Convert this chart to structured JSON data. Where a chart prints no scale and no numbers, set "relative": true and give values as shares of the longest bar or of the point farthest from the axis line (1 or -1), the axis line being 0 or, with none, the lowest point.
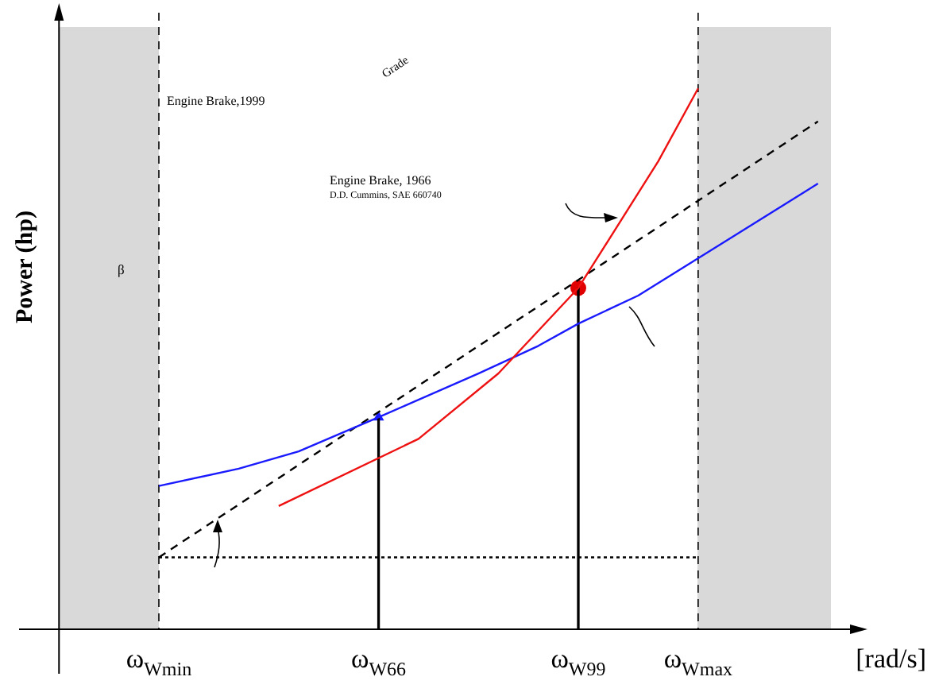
{
  "chart_data": {
    "type": "line",
    "relative": true,
    "ylabel": "Power (hp)",
    "xlabel": "[rad/s]",
    "categories": [
      null,
      null,
      null,
      null,
      null,
      null,
      null,
      "ω$_{Wmin}$",
      null,
      null,
      null,
      null,
      null,
      null,
      null,
      null,
      null,
      null,
      "ω$_{W66}$",
      null,
      null,
      null,
      null,
      null,
      null,
      null,
      null,
      null,
      "ω$_{W99}$",
      null,
      null,
      null,
      null,
      null,
      "ω$_{Wmax}$",
      null,
      null,
      null,
      null,
      null,
      null,
      null,
      null
    ],
    "series": [
      {
        "color": "#ee1111",
        "values": [
          null,
          null,
          null,
          null,
          null,
          null,
          null,
          null,
          null,
          null,
          null,
          null,
          null,
          0.228,
          null,
          null,
          null,
          null,
          null,
          null,
          0.352,
          null,
          null,
          null,
          0.473,
          null,
          null,
          null,
          0.631,
          null,
          null,
          null,
          0.865,
          null,
          1,
          null,
          null,
          null,
          null,
          null,
          null,
          null,
          null
        ]
      },
      {
        "color": "#1a1aff",
        "values": [
          null,
          null,
          null,
          null,
          null,
          null,
          null,
          0.265,
          null,
          null,
          null,
          0.297,
          null,
          null,
          0.329,
          null,
          null,
          null,
          0.392,
          null,
          null,
          null,
          null,
          0.473,
          null,
          null,
          0.524,
          null,
          0.565,
          null,
          null,
          0.617,
          null,
          null,
          null,
          null,
          0.732,
          null,
          null,
          null,
          0.824,
          null,
          null
        ]
      },
      {
        "color": "#000000",
        "line_style": "dashed",
        "values": [
          null,
          null,
          null,
          null,
          null,
          null,
          null,
          0.133,
          null,
          null,
          null,
          null,
          null,
          null,
          null,
          null,
          null,
          null,
          null,
          null,
          null,
          null,
          null,
          null,
          null,
          null,
          null,
          null,
          null,
          null,
          null,
          null,
          null,
          null,
          null,
          null,
          null,
          null,
          null,
          null,
          0.939,
          null,
          null
        ]
      },
      {
        "color": "#000000",
        "line_style": "dotted",
        "values": [
          null,
          null,
          null,
          null,
          null,
          null,
          null,
          0.133,
          null,
          null,
          null,
          null,
          null,
          null,
          null,
          null,
          null,
          null,
          null,
          null,
          null,
          null,
          null,
          null,
          null,
          null,
          null,
          null,
          null,
          null,
          null,
          null,
          null,
          null,
          0.133,
          null,
          null,
          null,
          null,
          null,
          null,
          null,
          null
        ]
      },
      {
        "type": "bar",
        "color": "#000000",
        "values": [
          null,
          null,
          null,
          null,
          null,
          null,
          null,
          null,
          null,
          null,
          null,
          null,
          null,
          null,
          null,
          null,
          null,
          null,
          0.392,
          null,
          null,
          null,
          null,
          null,
          null,
          null,
          null,
          null,
          0.631,
          null,
          null,
          null,
          null,
          null,
          null,
          null,
          null,
          null,
          null,
          null,
          null,
          null,
          null
        ]
      },
      {
        "type": "scatter",
        "color": "#e00000",
        "marker": "circle",
        "x": [
          "ω$_{W99}$"
        ],
        "values": [
          0.631
        ]
      },
      {
        "type": "scatter",
        "color": "#1a1aff",
        "marker": "triangle",
        "x": [
          "ω$_{W66}$"
        ],
        "values": [
          0.392
        ]
      }
    ],
    "ref_lines": [
      {
        "axis": "x",
        "value": "ω$_{Wmin}$",
        "line_style": "dashed",
        "color": "#000000"
      },
      {
        "axis": "x",
        "value": "ω$_{Wmax}$",
        "line_style": "dashed",
        "color": "#000000"
      }
    ],
    "annotations": [
      "Grade",
      "Engine Brake,1999",
      "Engine Brake, 1966",
      "D.D. Cummins, SAE 660740",
      "β"
    ],
    "grid": false,
    "legend": false
  }
}
